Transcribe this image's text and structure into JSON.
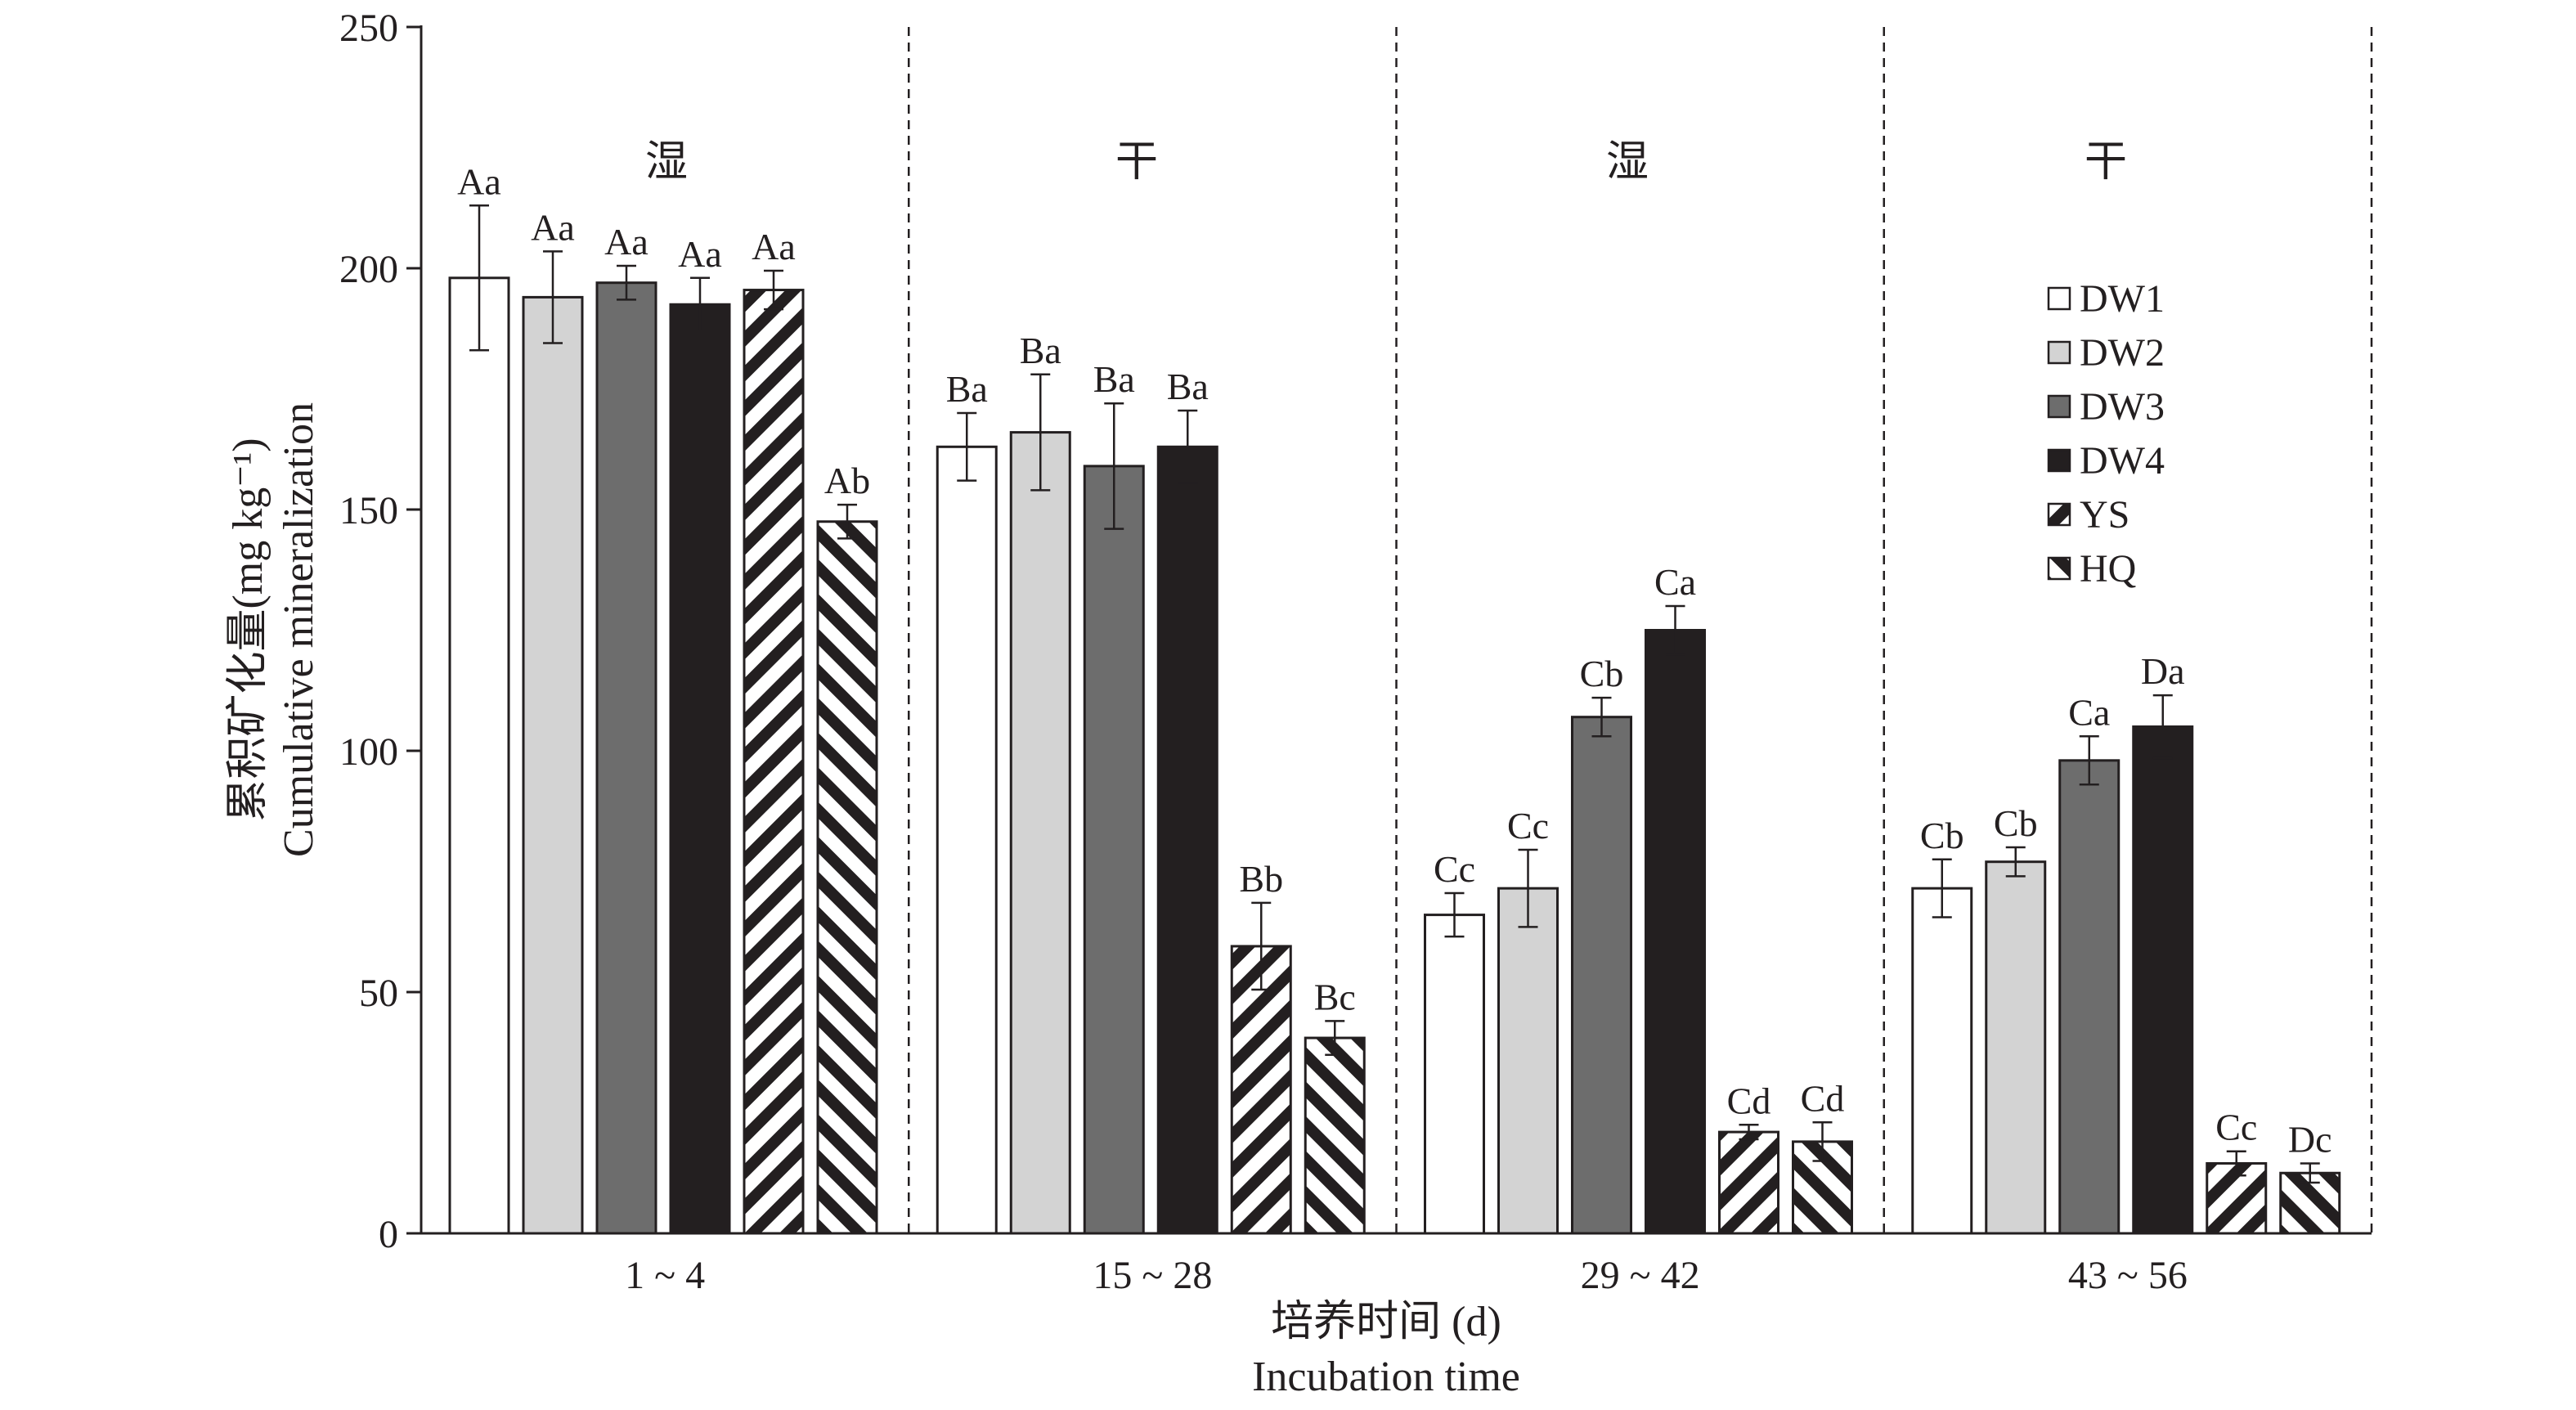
{
  "chart_data": {
    "type": "bar",
    "ylabel_cn": "累积矿化量(mg kg⁻¹)",
    "ylabel_en": "Cumulative mineralization",
    "xlabel_cn": "培养时间 (d)",
    "xlabel_en": "Incubation time",
    "ylim": [
      0,
      250
    ],
    "yticks": [
      "0",
      "50",
      "100",
      "150",
      "200",
      "250"
    ],
    "categories": [
      "1 ~ 4",
      "15 ~ 28",
      "29 ~ 42",
      "43 ~ 56"
    ],
    "period_labels": [
      "湿",
      "干",
      "湿",
      "干"
    ],
    "legend_position": "right, inside plot",
    "series": [
      {
        "name": "DW1",
        "pattern": "white",
        "values": [
          198,
          163,
          66,
          71.5
        ],
        "errors": [
          15,
          7,
          4.5,
          6
        ],
        "letters": [
          "Aa",
          "Ba",
          "Cc",
          "Cb"
        ]
      },
      {
        "name": "DW2",
        "pattern": "light-gray",
        "values": [
          194,
          166,
          71.5,
          77
        ],
        "errors": [
          9.5,
          12,
          8,
          3
        ],
        "letters": [
          "Aa",
          "Ba",
          "Cc",
          "Cb"
        ]
      },
      {
        "name": "DW3",
        "pattern": "dark-gray",
        "values": [
          197,
          159,
          107,
          98
        ],
        "errors": [
          3.5,
          13,
          4,
          5
        ],
        "letters": [
          "Aa",
          "Ba",
          "Cb",
          "Ca"
        ]
      },
      {
        "name": "DW4",
        "pattern": "black",
        "values": [
          192.5,
          163,
          125,
          105
        ],
        "errors": [
          5.5,
          7.5,
          5,
          6.5
        ],
        "letters": [
          "Aa",
          "Ba",
          "Ca",
          "Da"
        ]
      },
      {
        "name": "YS",
        "pattern": "diagonal-hatch",
        "values": [
          195.5,
          59.5,
          21,
          14.5
        ],
        "errors": [
          4,
          9,
          1.5,
          2.5
        ],
        "letters": [
          "Aa",
          "Bb",
          "Cd",
          "Cc"
        ]
      },
      {
        "name": "HQ",
        "pattern": "diagonal-hatch-reverse",
        "values": [
          147.5,
          40.5,
          19,
          12.5
        ],
        "errors": [
          3.5,
          3.5,
          4,
          2
        ],
        "letters": [
          "Ab",
          "Bc",
          "Cd",
          "Dc"
        ]
      }
    ],
    "colors": {
      "DW1": "#ffffff",
      "DW2": "#d3d3d3",
      "DW3": "#6d6d6d",
      "DW4": "#231f20",
      "stroke": "#231f20"
    }
  }
}
